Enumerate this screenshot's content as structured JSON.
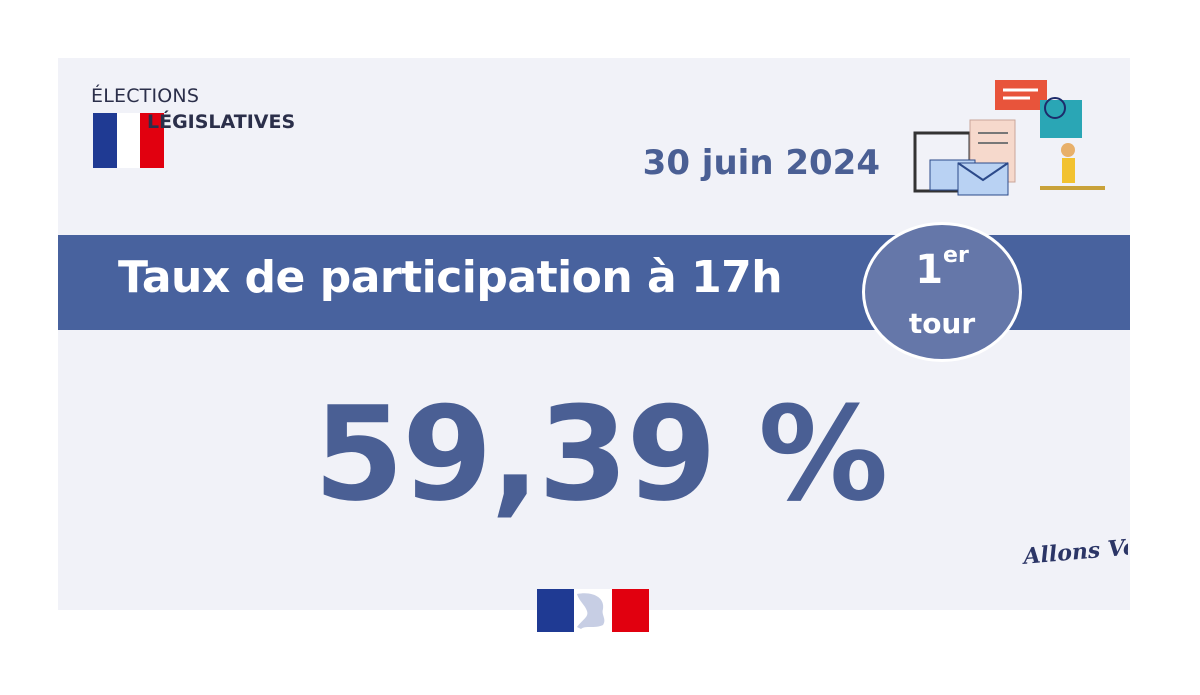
{
  "logo": {
    "line1": "ÉLECTIONS",
    "line2": "LÉGISLATIVES"
  },
  "date": "30 juin 2024",
  "banner": {
    "title": "Taux de participation à 17h"
  },
  "badge": {
    "number": "1",
    "superscript": "er",
    "word": "tour"
  },
  "participation": {
    "value": "59,39 %"
  },
  "slogan": "Allons Voter!",
  "colors": {
    "primary_blue": "#48629e",
    "text_blue": "#4a5f94",
    "badge": "#6577a9",
    "card_bg": "#f1f2f8",
    "flag_blue": "#1f3a93",
    "flag_red": "#e1000f"
  },
  "icons": [
    "french-flag-icon",
    "ballot-box-illustration",
    "marianne-logo"
  ]
}
